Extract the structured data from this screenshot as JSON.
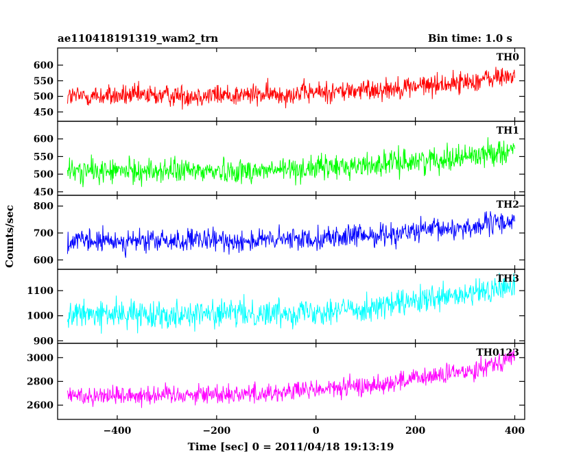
{
  "chart_data": {
    "type": "line",
    "title": "ae110418191319_wam2_trn",
    "subtitle": "Bin time: 1.0 s",
    "xlabel": "Time [sec] 0 = 2011/04/18 19:13:19",
    "ylabel": "Counts/sec",
    "xlim": [
      -520,
      420
    ],
    "x_ticks": [
      -400,
      -200,
      0,
      200,
      400
    ],
    "x_tick_labels": [
      "−400",
      "−200",
      "0",
      "200",
      "400"
    ],
    "x_range": [
      -500,
      400
    ],
    "bin_time": 1.0,
    "panels": [
      {
        "name": "TH0",
        "color": "#ff0000",
        "ylim": [
          420,
          655
        ],
        "yticks": [
          450,
          500,
          550,
          600
        ],
        "ytick_labels": [
          "450",
          "500",
          "550",
          "600"
        ],
        "trend": [
          [
            -500,
            500
          ],
          [
            -100,
            505
          ],
          [
            100,
            520
          ],
          [
            300,
            545
          ],
          [
            400,
            568
          ]
        ],
        "noise": 25
      },
      {
        "name": "TH1",
        "color": "#00ff00",
        "ylim": [
          440,
          650
        ],
        "yticks": [
          450,
          500,
          550,
          600
        ],
        "ytick_labels": [
          "450",
          "500",
          "550",
          "600"
        ],
        "trend": [
          [
            -500,
            508
          ],
          [
            -100,
            510
          ],
          [
            100,
            525
          ],
          [
            300,
            550
          ],
          [
            400,
            570
          ]
        ],
        "noise": 25
      },
      {
        "name": "TH2",
        "color": "#0000ff",
        "ylim": [
          565,
          840
        ],
        "yticks": [
          600,
          700,
          800
        ],
        "ytick_labels": [
          "600",
          "700",
          "800"
        ],
        "trend": [
          [
            -500,
            668
          ],
          [
            -100,
            672
          ],
          [
            100,
            690
          ],
          [
            300,
            720
          ],
          [
            400,
            745
          ]
        ],
        "noise": 30
      },
      {
        "name": "TH3",
        "color": "#00ffff",
        "ylim": [
          890,
          1185
        ],
        "yticks": [
          900,
          1000,
          1100
        ],
        "ytick_labels": [
          "900",
          "1000",
          "1100"
        ],
        "trend": [
          [
            -500,
            1005
          ],
          [
            -100,
            1010
          ],
          [
            100,
            1030
          ],
          [
            300,
            1080
          ],
          [
            400,
            1120
          ]
        ],
        "noise": 38
      },
      {
        "name": "TH0123",
        "color": "#ff00ff",
        "ylim": [
          2480,
          3120
        ],
        "yticks": [
          2600,
          2800,
          3000
        ],
        "ytick_labels": [
          "2600",
          "2800",
          "3000"
        ],
        "trend": [
          [
            -500,
            2680
          ],
          [
            -100,
            2700
          ],
          [
            100,
            2760
          ],
          [
            300,
            2880
          ],
          [
            400,
            3010
          ]
        ],
        "noise": 60
      }
    ]
  }
}
